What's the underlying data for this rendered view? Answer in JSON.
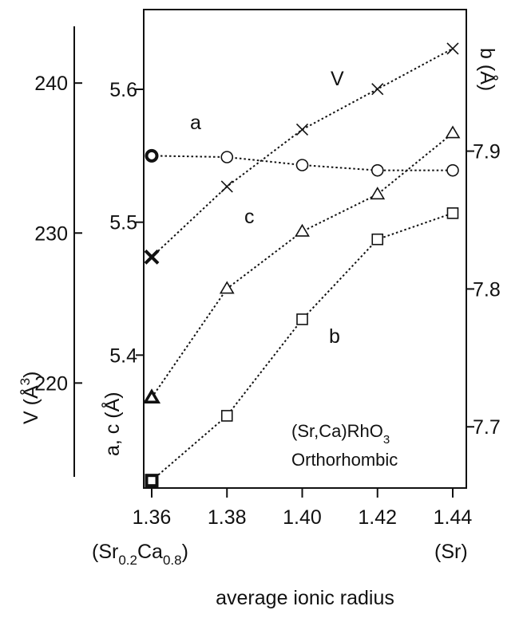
{
  "chart_data": {
    "type": "line",
    "x_ticks": [
      "1.36",
      "1.38",
      "1.40",
      "1.42",
      "1.44"
    ],
    "x_end_labels": {
      "left": {
        "main": "(Sr",
        "sub1": "0.2",
        "mid": "Ca",
        "sub2": "0.8",
        "close": ")"
      },
      "right": "(Sr)"
    },
    "xlabel": "average ionic radius",
    "xlim": [
      1.36,
      1.44
    ],
    "y_axes": {
      "ac": {
        "label": {
          "main": "a, c (",
          "unit": "Å",
          "close": ")"
        },
        "ticks": [
          {
            "value": 5.4,
            "label": "5.4"
          },
          {
            "value": 5.5,
            "label": "5.5"
          },
          {
            "value": 5.6,
            "label": "5.6"
          }
        ],
        "ylim": [
          5.3,
          5.66
        ]
      },
      "v": {
        "label": {
          "main": "V (",
          "unit": "Å",
          "sup": "3",
          "close": ")"
        },
        "ticks": [
          {
            "value": 220,
            "label": "220"
          },
          {
            "value": 230,
            "label": "230"
          },
          {
            "value": 240,
            "label": "240"
          }
        ],
        "ylim": [
          213,
          244.9
        ]
      },
      "b": {
        "label": {
          "main": "b (",
          "unit": "Å",
          "close": ")"
        },
        "ticks": [
          {
            "value": 7.7,
            "label": "7.7"
          },
          {
            "value": 7.8,
            "label": "7.8"
          },
          {
            "value": 7.9,
            "label": "7.9"
          }
        ],
        "ylim": [
          7.6556,
          8.0027
        ]
      }
    },
    "series": [
      {
        "name": "a",
        "axis": "ac",
        "marker": "circle",
        "x": [
          1.36,
          1.38,
          1.4,
          1.42,
          1.44
        ],
        "y": [
          5.55,
          5.549,
          5.543,
          5.539,
          5.539
        ]
      },
      {
        "name": "V",
        "axis": "v",
        "marker": "cross",
        "x": [
          1.36,
          1.38,
          1.4,
          1.42,
          1.44
        ],
        "y": [
          228.4,
          233.1,
          236.9,
          239.6,
          242.3
        ]
      },
      {
        "name": "c",
        "axis": "ac",
        "marker": "triangle",
        "x": [
          1.36,
          1.38,
          1.4,
          1.42,
          1.44
        ],
        "y": [
          5.368,
          5.45,
          5.493,
          5.521,
          5.567
        ]
      },
      {
        "name": "b",
        "axis": "b",
        "marker": "square",
        "x": [
          1.36,
          1.38,
          1.4,
          1.42,
          1.44
        ],
        "y": [
          7.661,
          7.708,
          7.778,
          7.836,
          7.855
        ]
      }
    ],
    "annotation": {
      "line1_main": "(Sr,Ca)RhO",
      "line1_sub": "3",
      "line2": "Orthorhombic"
    },
    "grid": false,
    "colors": {
      "ink": "#111111",
      "background": "#ffffff"
    }
  }
}
